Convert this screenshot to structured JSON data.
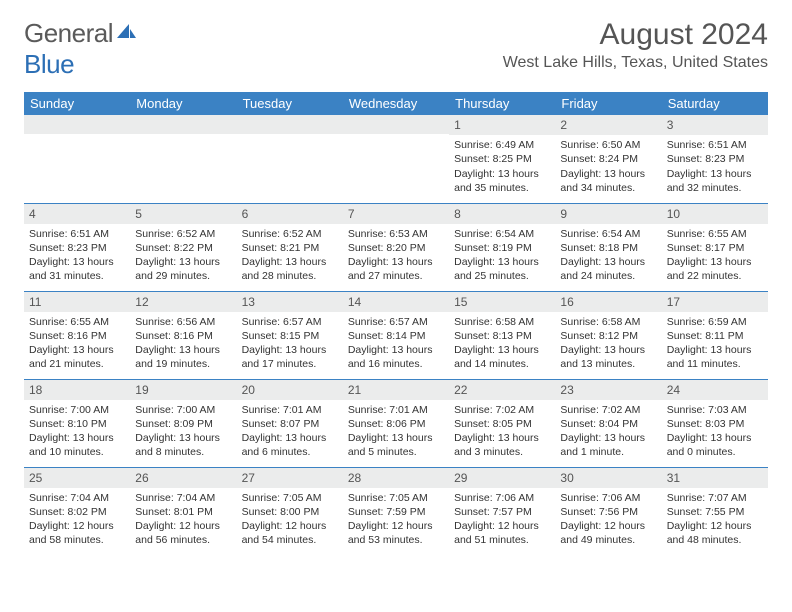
{
  "brand": {
    "part1": "General",
    "part2": "Blue"
  },
  "title": "August 2024",
  "location": "West Lake Hills, Texas, United States",
  "colors": {
    "header_bg": "#3b82c4",
    "header_text": "#ffffff",
    "daynum_bg": "#ebecec",
    "row_border": "#3b82c4",
    "text": "#333333",
    "logo_gray": "#5a5a5a",
    "logo_blue": "#2c6fb5"
  },
  "dayHeaders": [
    "Sunday",
    "Monday",
    "Tuesday",
    "Wednesday",
    "Thursday",
    "Friday",
    "Saturday"
  ],
  "weeks": [
    [
      null,
      null,
      null,
      null,
      {
        "n": "1",
        "sr": "6:49 AM",
        "ss": "8:25 PM",
        "dl": "13 hours and 35 minutes."
      },
      {
        "n": "2",
        "sr": "6:50 AM",
        "ss": "8:24 PM",
        "dl": "13 hours and 34 minutes."
      },
      {
        "n": "3",
        "sr": "6:51 AM",
        "ss": "8:23 PM",
        "dl": "13 hours and 32 minutes."
      }
    ],
    [
      {
        "n": "4",
        "sr": "6:51 AM",
        "ss": "8:23 PM",
        "dl": "13 hours and 31 minutes."
      },
      {
        "n": "5",
        "sr": "6:52 AM",
        "ss": "8:22 PM",
        "dl": "13 hours and 29 minutes."
      },
      {
        "n": "6",
        "sr": "6:52 AM",
        "ss": "8:21 PM",
        "dl": "13 hours and 28 minutes."
      },
      {
        "n": "7",
        "sr": "6:53 AM",
        "ss": "8:20 PM",
        "dl": "13 hours and 27 minutes."
      },
      {
        "n": "8",
        "sr": "6:54 AM",
        "ss": "8:19 PM",
        "dl": "13 hours and 25 minutes."
      },
      {
        "n": "9",
        "sr": "6:54 AM",
        "ss": "8:18 PM",
        "dl": "13 hours and 24 minutes."
      },
      {
        "n": "10",
        "sr": "6:55 AM",
        "ss": "8:17 PM",
        "dl": "13 hours and 22 minutes."
      }
    ],
    [
      {
        "n": "11",
        "sr": "6:55 AM",
        "ss": "8:16 PM",
        "dl": "13 hours and 21 minutes."
      },
      {
        "n": "12",
        "sr": "6:56 AM",
        "ss": "8:16 PM",
        "dl": "13 hours and 19 minutes."
      },
      {
        "n": "13",
        "sr": "6:57 AM",
        "ss": "8:15 PM",
        "dl": "13 hours and 17 minutes."
      },
      {
        "n": "14",
        "sr": "6:57 AM",
        "ss": "8:14 PM",
        "dl": "13 hours and 16 minutes."
      },
      {
        "n": "15",
        "sr": "6:58 AM",
        "ss": "8:13 PM",
        "dl": "13 hours and 14 minutes."
      },
      {
        "n": "16",
        "sr": "6:58 AM",
        "ss": "8:12 PM",
        "dl": "13 hours and 13 minutes."
      },
      {
        "n": "17",
        "sr": "6:59 AM",
        "ss": "8:11 PM",
        "dl": "13 hours and 11 minutes."
      }
    ],
    [
      {
        "n": "18",
        "sr": "7:00 AM",
        "ss": "8:10 PM",
        "dl": "13 hours and 10 minutes."
      },
      {
        "n": "19",
        "sr": "7:00 AM",
        "ss": "8:09 PM",
        "dl": "13 hours and 8 minutes."
      },
      {
        "n": "20",
        "sr": "7:01 AM",
        "ss": "8:07 PM",
        "dl": "13 hours and 6 minutes."
      },
      {
        "n": "21",
        "sr": "7:01 AM",
        "ss": "8:06 PM",
        "dl": "13 hours and 5 minutes."
      },
      {
        "n": "22",
        "sr": "7:02 AM",
        "ss": "8:05 PM",
        "dl": "13 hours and 3 minutes."
      },
      {
        "n": "23",
        "sr": "7:02 AM",
        "ss": "8:04 PM",
        "dl": "13 hours and 1 minute."
      },
      {
        "n": "24",
        "sr": "7:03 AM",
        "ss": "8:03 PM",
        "dl": "13 hours and 0 minutes."
      }
    ],
    [
      {
        "n": "25",
        "sr": "7:04 AM",
        "ss": "8:02 PM",
        "dl": "12 hours and 58 minutes."
      },
      {
        "n": "26",
        "sr": "7:04 AM",
        "ss": "8:01 PM",
        "dl": "12 hours and 56 minutes."
      },
      {
        "n": "27",
        "sr": "7:05 AM",
        "ss": "8:00 PM",
        "dl": "12 hours and 54 minutes."
      },
      {
        "n": "28",
        "sr": "7:05 AM",
        "ss": "7:59 PM",
        "dl": "12 hours and 53 minutes."
      },
      {
        "n": "29",
        "sr": "7:06 AM",
        "ss": "7:57 PM",
        "dl": "12 hours and 51 minutes."
      },
      {
        "n": "30",
        "sr": "7:06 AM",
        "ss": "7:56 PM",
        "dl": "12 hours and 49 minutes."
      },
      {
        "n": "31",
        "sr": "7:07 AM",
        "ss": "7:55 PM",
        "dl": "12 hours and 48 minutes."
      }
    ]
  ],
  "labels": {
    "sunrise": "Sunrise:",
    "sunset": "Sunset:",
    "daylight": "Daylight:"
  }
}
